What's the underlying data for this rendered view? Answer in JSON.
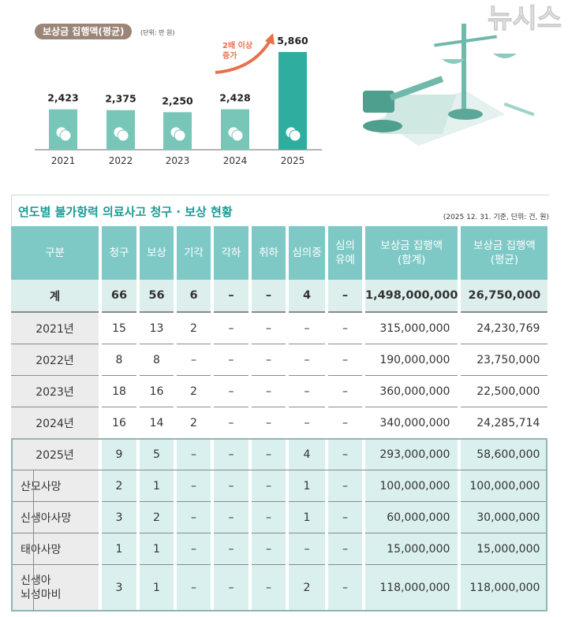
{
  "chart_data": {
    "type": "bar",
    "title": "보상금 집행액(평균)",
    "unit_note": "(단위: 만 원)",
    "categories": [
      "2021",
      "2022",
      "2023",
      "2024",
      "2025"
    ],
    "values": [
      2423,
      2375,
      2250,
      2428,
      5860
    ],
    "value_labels": [
      "2,423",
      "2,375",
      "2,250",
      "2,428",
      "5,860"
    ],
    "annotation": [
      "2배 이상",
      "증가"
    ],
    "colors": {
      "bar": "#78c6b8",
      "highlight": "#2fae9f",
      "annotation": "#e8704a"
    },
    "ylim": [
      0,
      6500
    ]
  },
  "table": {
    "title": "연도별 불가항력 의료사고 청구 · 보상 현황",
    "note": "(2025 12. 31. 기준, 단위: 건, 원)",
    "headers": [
      [
        "구분"
      ],
      [
        "청구"
      ],
      [
        "보상"
      ],
      [
        "기각"
      ],
      [
        "각하"
      ],
      [
        "취하"
      ],
      [
        "심의중"
      ],
      [
        "심의",
        "유예"
      ],
      [
        "보상금 집행액",
        "(합계)"
      ],
      [
        "보상금 집행액",
        "(평균)"
      ]
    ],
    "total": [
      "계",
      "66",
      "56",
      "6",
      "–",
      "–",
      "4",
      "–",
      "1,498,000,000",
      "26,750,000"
    ],
    "rows": [
      [
        "2021년",
        "15",
        "13",
        "2",
        "–",
        "–",
        "–",
        "–",
        "315,000,000",
        "24,230,769"
      ],
      [
        "2022년",
        "8",
        "8",
        "–",
        "–",
        "–",
        "–",
        "–",
        "190,000,000",
        "23,750,000"
      ],
      [
        "2023년",
        "18",
        "16",
        "2",
        "–",
        "–",
        "–",
        "–",
        "360,000,000",
        "22,500,000"
      ],
      [
        "2024년",
        "16",
        "14",
        "2",
        "–",
        "–",
        "–",
        "–",
        "340,000,000",
        "24,285,714"
      ],
      [
        "2025년",
        "9",
        "5",
        "–",
        "–",
        "–",
        "4",
        "–",
        "293,000,000",
        "58,600,000"
      ]
    ],
    "sub_rows": [
      [
        "산모사망",
        "2",
        "1",
        "–",
        "–",
        "–",
        "1",
        "–",
        "100,000,000",
        "100,000,000"
      ],
      [
        "신생아사망",
        "3",
        "2",
        "–",
        "–",
        "–",
        "1",
        "–",
        "60,000,000",
        "30,000,000"
      ],
      [
        "태아사망",
        "1",
        "1",
        "–",
        "–",
        "–",
        "–",
        "–",
        "15,000,000",
        "15,000,000"
      ],
      [
        "신생아\n뇌성마비",
        "3",
        "1",
        "–",
        "–",
        "–",
        "2",
        "–",
        "118,000,000",
        "118,000,000"
      ]
    ]
  },
  "watermark": "뉴시스"
}
